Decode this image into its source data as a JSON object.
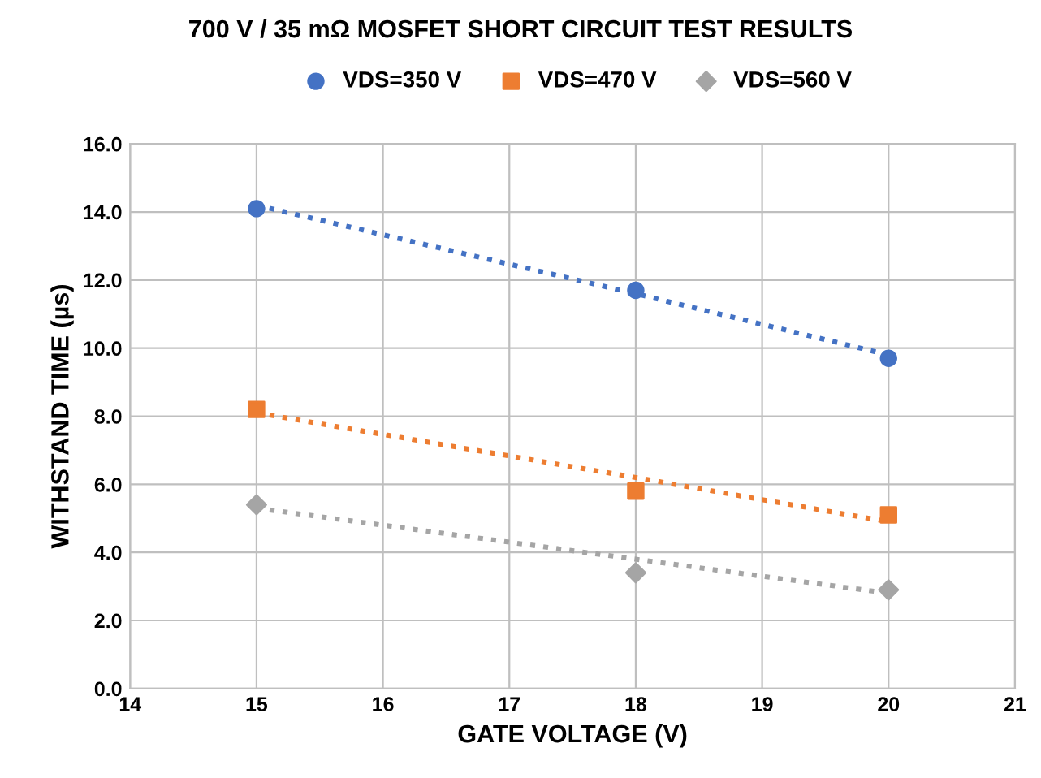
{
  "chart_data": {
    "type": "scatter",
    "title": "700 V / 35 mΩ MOSFET SHORT CIRCUIT TEST RESULTS",
    "xlabel": "GATE VOLTAGE (V)",
    "ylabel": "WITHSTAND TIME (µs)",
    "x": [
      15,
      18,
      20
    ],
    "series": [
      {
        "name": "VDS=350 V",
        "color": "#4472c4",
        "marker": "circle",
        "values": [
          14.1,
          11.7,
          9.7
        ]
      },
      {
        "name": "VDS=470 V",
        "color": "#ed7d31",
        "marker": "square",
        "values": [
          8.2,
          5.8,
          5.1
        ]
      },
      {
        "name": "VDS=560 V",
        "color": "#a5a5a5",
        "marker": "diamond",
        "values": [
          5.4,
          3.4,
          2.9
        ]
      },
      {
        "type": "line",
        "color": "#4472c4",
        "marker": "none",
        "line_style": "dotted",
        "values": [
          14.2,
          11.6,
          9.8
        ]
      },
      {
        "type": "line",
        "color": "#ed7d31",
        "marker": "none",
        "line_style": "dotted",
        "values": [
          8.1,
          6.2,
          4.9
        ]
      },
      {
        "type": "line",
        "color": "#a5a5a5",
        "marker": "none",
        "line_style": "dotted",
        "values": [
          5.3,
          3.8,
          2.8
        ]
      }
    ],
    "xlim": [
      14,
      21
    ],
    "xticks": [
      14,
      15,
      16,
      17,
      18,
      19,
      20,
      21
    ],
    "ylim": [
      0,
      16
    ],
    "yticks": [
      {
        "value": 0,
        "label": "0.0"
      },
      {
        "value": 2,
        "label": "2.0"
      },
      {
        "value": 4,
        "label": "4.0"
      },
      {
        "value": 6,
        "label": "6.0"
      },
      {
        "value": 8,
        "label": "8.0"
      },
      {
        "value": 10,
        "label": "10.0"
      },
      {
        "value": 12,
        "label": "12.0"
      },
      {
        "value": 14,
        "label": "14.0"
      },
      {
        "value": 16,
        "label": "16.0"
      }
    ],
    "grid": true,
    "legend": "top"
  }
}
